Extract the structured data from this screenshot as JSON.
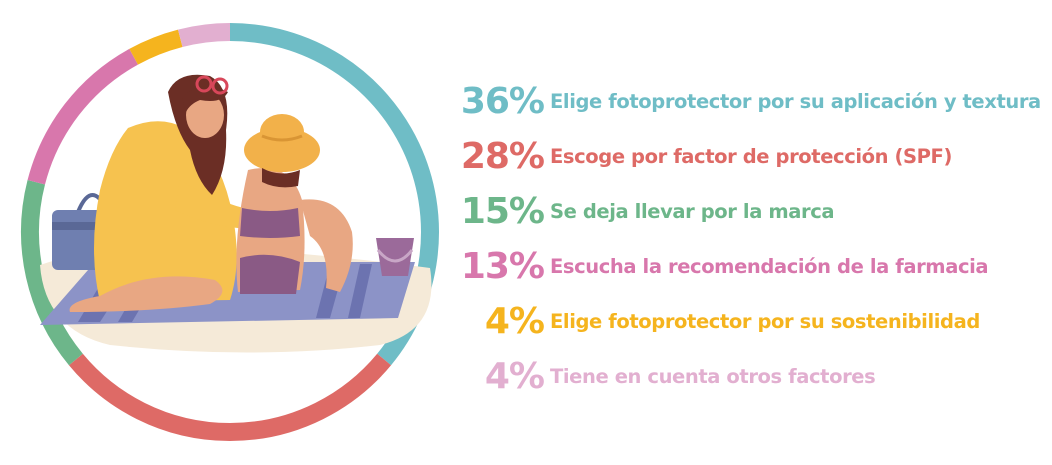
{
  "chart_data": {
    "type": "donut",
    "title": "",
    "categories": [
      "Elige fotoprotector por su aplicación y textura",
      "Escoge por factor de protección (SPF)",
      "Se deja llevar por la marca",
      "Escucha la recomendación de la farmacia",
      "Elige fotoprotector por su sostenibilidad",
      "Tiene en cuenta otros factores"
    ],
    "values": [
      36,
      28,
      15,
      13,
      4,
      4
    ],
    "value_labels": [
      "36%",
      "28%",
      "15%",
      "13%",
      "4%",
      "4%"
    ],
    "colors": [
      "#6fbdc6",
      "#de6a66",
      "#6db68a",
      "#d877ac",
      "#f5b41e",
      "#e2afd0"
    ],
    "legend": "right"
  },
  "illustration": {
    "description_icon": "beach-illustration-icon",
    "colors": {
      "sand": "#f5ead8",
      "towel": "#8c93c7",
      "towel_stripe": "#6c73b0",
      "dress": "#f6c24f",
      "hair": "#6b2e25",
      "skin": "#e8a783",
      "hat": "#f2b14a",
      "swimsuit": "#8a5a85",
      "bag": "#6f7fb0",
      "bucket": "#9b6a9a"
    }
  }
}
